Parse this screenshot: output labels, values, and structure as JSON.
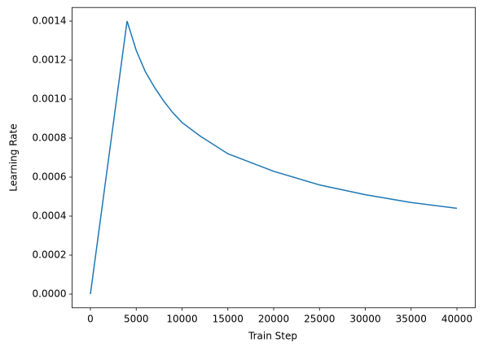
{
  "chart_data": {
    "type": "line",
    "xlabel": "Train Step",
    "ylabel": "Learning Rate",
    "x": [
      0,
      4000,
      5000,
      6000,
      7000,
      8000,
      9000,
      10000,
      12000,
      15000,
      20000,
      25000,
      30000,
      35000,
      40000
    ],
    "series": [
      {
        "color": "#1f77b4",
        "values": [
          0,
          0.0014,
          0.00125,
          0.00114,
          0.00106,
          0.00099,
          0.00093,
          0.00088,
          0.00081,
          0.00072,
          0.00063,
          0.00056,
          0.00051,
          0.00047,
          0.00044
        ]
      }
    ],
    "xlim": [
      -2000,
      42000
    ],
    "ylim": [
      -7e-05,
      0.00147
    ],
    "xticks": [
      0,
      5000,
      10000,
      15000,
      20000,
      25000,
      30000,
      35000,
      40000
    ],
    "yticks": [
      {
        "value": 0,
        "label": "0.0000"
      },
      {
        "value": 0.0002,
        "label": "0.0002"
      },
      {
        "value": 0.0004,
        "label": "0.0004"
      },
      {
        "value": 0.0006,
        "label": "0.0006"
      },
      {
        "value": 0.0008,
        "label": "0.0008"
      },
      {
        "value": 0.001,
        "label": "0.0010"
      },
      {
        "value": 0.0012,
        "label": "0.0012"
      },
      {
        "value": 0.0014,
        "label": "0.0014"
      }
    ]
  }
}
